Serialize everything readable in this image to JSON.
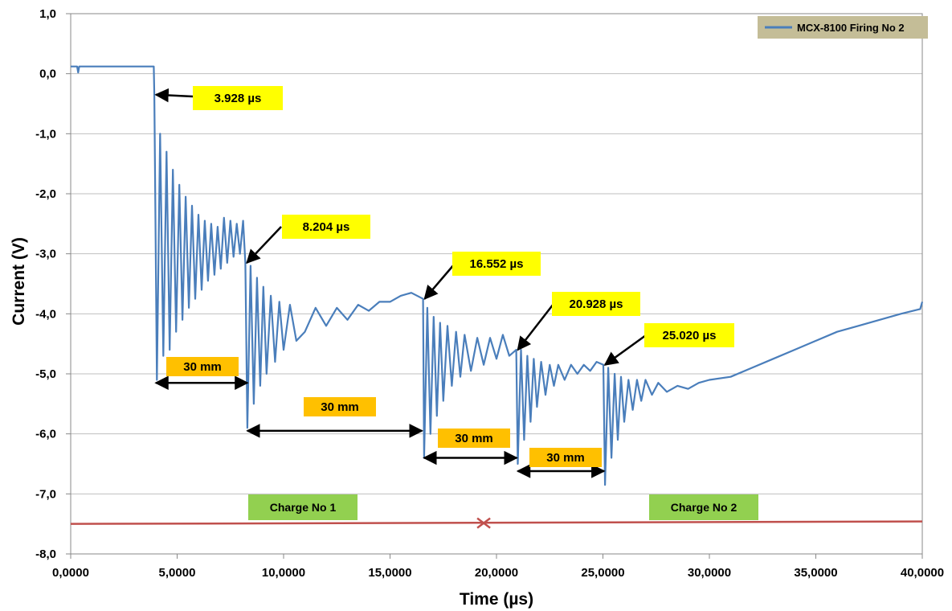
{
  "chart_data": {
    "type": "line",
    "title": "",
    "xlabel": "Time (µs)",
    "ylabel": "Current (V)",
    "xlim": [
      0,
      40000
    ],
    "ylim": [
      -8,
      1
    ],
    "x_ticks": [
      "0,0000",
      "5,0000",
      "10,0000",
      "15,0000",
      "20,0000",
      "25,0000",
      "30,0000",
      "35,0000",
      "40,0000"
    ],
    "y_ticks": [
      "1,0",
      "0,0",
      "-1,0",
      "-2,0",
      "-3,0",
      "-4,0",
      "-5,0",
      "-6,0",
      "-7,0",
      "-8,0"
    ],
    "grid": "horizontal",
    "legend_position": "top-right",
    "series": [
      {
        "name": "MCX-8100 Firing No 2",
        "color": "#4a7ebb",
        "x": [
          0,
          300,
          350,
          400,
          3900,
          3928,
          4050,
          4200,
          4350,
          4500,
          4650,
          4800,
          4950,
          5100,
          5250,
          5400,
          5550,
          5700,
          5850,
          6000,
          6150,
          6300,
          6450,
          6600,
          6750,
          6900,
          7050,
          7200,
          7350,
          7500,
          7650,
          7800,
          7950,
          8100,
          8204,
          8300,
          8450,
          8600,
          8750,
          8900,
          9050,
          9200,
          9400,
          9600,
          9800,
          10000,
          10300,
          10600,
          11000,
          11500,
          12000,
          12500,
          13000,
          13500,
          14000,
          14500,
          15000,
          15500,
          16000,
          16552,
          16600,
          16750,
          16900,
          17050,
          17200,
          17350,
          17500,
          17700,
          17900,
          18100,
          18300,
          18500,
          18800,
          19100,
          19400,
          19700,
          20000,
          20300,
          20600,
          20928,
          21000,
          21150,
          21300,
          21450,
          21600,
          21750,
          21900,
          22100,
          22300,
          22500,
          22700,
          22900,
          23200,
          23500,
          23800,
          24100,
          24400,
          24700,
          25020,
          25100,
          25250,
          25400,
          25550,
          25700,
          25850,
          26000,
          26200,
          26400,
          26600,
          26800,
          27000,
          27300,
          27600,
          28000,
          28500,
          29000,
          29500,
          30000,
          31000,
          32000,
          33000,
          34000,
          35000,
          36000,
          37000,
          38000,
          39000,
          39900,
          40000
        ],
        "values": [
          0.12,
          0.12,
          0.02,
          0.12,
          0.12,
          -0.35,
          -5.1,
          -1.0,
          -4.7,
          -1.3,
          -4.6,
          -1.6,
          -4.3,
          -1.85,
          -4.1,
          -2.05,
          -3.9,
          -2.2,
          -3.75,
          -2.35,
          -3.6,
          -2.45,
          -3.45,
          -2.5,
          -3.35,
          -2.55,
          -3.25,
          -2.4,
          -3.15,
          -2.45,
          -3.05,
          -2.5,
          -3.0,
          -2.45,
          -3.15,
          -5.9,
          -3.2,
          -5.5,
          -3.4,
          -5.2,
          -3.55,
          -5.0,
          -3.7,
          -4.8,
          -3.8,
          -4.6,
          -3.85,
          -4.45,
          -4.3,
          -3.9,
          -4.2,
          -3.9,
          -4.1,
          -3.85,
          -3.95,
          -3.8,
          -3.8,
          -3.7,
          -3.65,
          -3.75,
          -6.4,
          -3.9,
          -6.0,
          -4.05,
          -5.7,
          -4.15,
          -5.45,
          -4.2,
          -5.2,
          -4.3,
          -5.05,
          -4.35,
          -4.95,
          -4.4,
          -4.85,
          -4.4,
          -4.75,
          -4.35,
          -4.7,
          -4.6,
          -6.5,
          -4.6,
          -6.1,
          -4.7,
          -5.8,
          -4.75,
          -5.55,
          -4.8,
          -5.35,
          -4.85,
          -5.2,
          -4.85,
          -5.1,
          -4.85,
          -5.0,
          -4.85,
          -4.95,
          -4.8,
          -4.85,
          -6.85,
          -4.9,
          -6.4,
          -5.0,
          -6.1,
          -5.05,
          -5.8,
          -5.1,
          -5.6,
          -5.1,
          -5.45,
          -5.1,
          -5.35,
          -5.15,
          -5.3,
          -5.2,
          -5.25,
          -5.15,
          -5.1,
          -5.05,
          -4.9,
          -4.75,
          -4.6,
          -4.45,
          -4.3,
          -4.2,
          -4.1,
          -4.0,
          -3.92,
          -3.8
        ]
      }
    ],
    "annotations": [
      {
        "label": "3.928 µs",
        "x": 3928,
        "y": -0.35
      },
      {
        "label": "8.204 µs",
        "x": 8204,
        "y": -3.15
      },
      {
        "label": "16.552 µs",
        "x": 16552,
        "y": -3.75
      },
      {
        "label": "20.928 µs",
        "x": 20928,
        "y": -4.6
      },
      {
        "label": "25.020 µs",
        "x": 25020,
        "y": -4.85
      }
    ],
    "distance_labels": [
      {
        "label": "30 mm",
        "x_start": 4000,
        "x_end": 8300,
        "y": -5.15
      },
      {
        "label": "30 mm",
        "x_start": 8300,
        "x_end": 16500,
        "y": -5.95
      },
      {
        "label": "30 mm",
        "x_start": 16600,
        "x_end": 20950,
        "y": -6.4
      },
      {
        "label": "30 mm",
        "x_start": 21000,
        "x_end": 25050,
        "y": -6.62
      }
    ],
    "charge_labels": [
      {
        "label": "Charge  No  1"
      },
      {
        "label": "Charge  No  2"
      }
    ],
    "charge_line": {
      "x_start": 0,
      "x_end": 40000,
      "y": -7.5,
      "marker_x": 19400,
      "color": "#c0504d"
    }
  }
}
